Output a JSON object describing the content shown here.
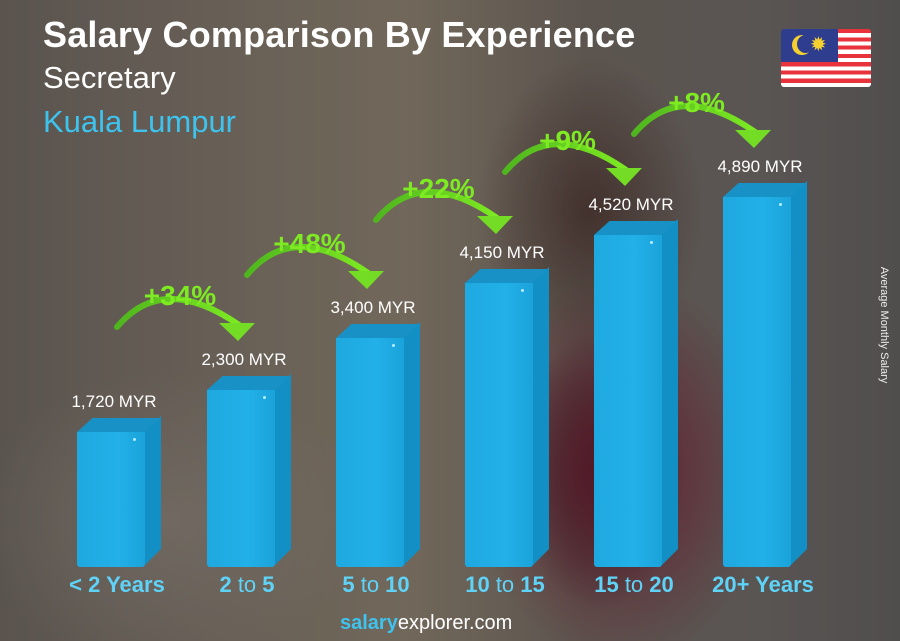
{
  "header": {
    "title": "Salary Comparison By Experience",
    "subtitle": "Secretary",
    "location": "Kuala Lumpur"
  },
  "flag": {
    "country": "Malaysia",
    "icon": "malaysia-flag-icon"
  },
  "axis": {
    "ylabel": "Average Monthly Salary"
  },
  "bars": [
    {
      "category_parts": [
        {
          "text": "< 2 Years",
          "bold": true
        }
      ],
      "value_label": "1,720 MYR"
    },
    {
      "category_parts": [
        {
          "text": "2",
          "bold": true
        },
        {
          "text": " to ",
          "bold": false
        },
        {
          "text": "5",
          "bold": true
        }
      ],
      "value_label": "2,300 MYR"
    },
    {
      "category_parts": [
        {
          "text": "5",
          "bold": true
        },
        {
          "text": " to ",
          "bold": false
        },
        {
          "text": "10",
          "bold": true
        }
      ],
      "value_label": "3,400 MYR"
    },
    {
      "category_parts": [
        {
          "text": "10",
          "bold": true
        },
        {
          "text": " to ",
          "bold": false
        },
        {
          "text": "15",
          "bold": true
        }
      ],
      "value_label": "4,150 MYR"
    },
    {
      "category_parts": [
        {
          "text": "15",
          "bold": true
        },
        {
          "text": " to ",
          "bold": false
        },
        {
          "text": "20",
          "bold": true
        }
      ],
      "value_label": "4,520 MYR"
    },
    {
      "category_parts": [
        {
          "text": "20+ Years",
          "bold": true
        }
      ],
      "value_label": "4,890 MYR"
    }
  ],
  "increases": [
    "+34%",
    "+48%",
    "+22%",
    "+9%",
    "+8%"
  ],
  "footer": {
    "brand_bold": "salary",
    "brand_rest": "explorer.com"
  },
  "colors": {
    "bar": "#22b0e8",
    "bar_side": "#128fc4",
    "bar_top": "#1791c6",
    "increase": "#7dea22",
    "category": "#5fd3f7",
    "location": "#3ec3ee"
  },
  "chart_data": {
    "type": "bar",
    "title": "Salary Comparison By Experience",
    "subtitle": "Secretary — Kuala Lumpur",
    "categories": [
      "< 2 Years",
      "2 to 5",
      "5 to 10",
      "10 to 15",
      "15 to 20",
      "20+ Years"
    ],
    "values": [
      1720,
      2300,
      3400,
      4150,
      4520,
      4890
    ],
    "value_labels": [
      "1,720 MYR",
      "2,300 MYR",
      "3,400 MYR",
      "4,150 MYR",
      "4,520 MYR",
      "4,890 MYR"
    ],
    "unit": "MYR",
    "annotations": [
      {
        "from": "< 2 Years",
        "to": "2 to 5",
        "text": "+34%"
      },
      {
        "from": "2 to 5",
        "to": "5 to 10",
        "text": "+48%"
      },
      {
        "from": "5 to 10",
        "to": "10 to 15",
        "text": "+22%"
      },
      {
        "from": "10 to 15",
        "to": "15 to 20",
        "text": "+9%"
      },
      {
        "from": "15 to 20",
        "to": "20+ Years",
        "text": "+8%"
      }
    ],
    "xlabel": "",
    "ylabel": "Average Monthly Salary",
    "grid": false,
    "legend": null
  }
}
